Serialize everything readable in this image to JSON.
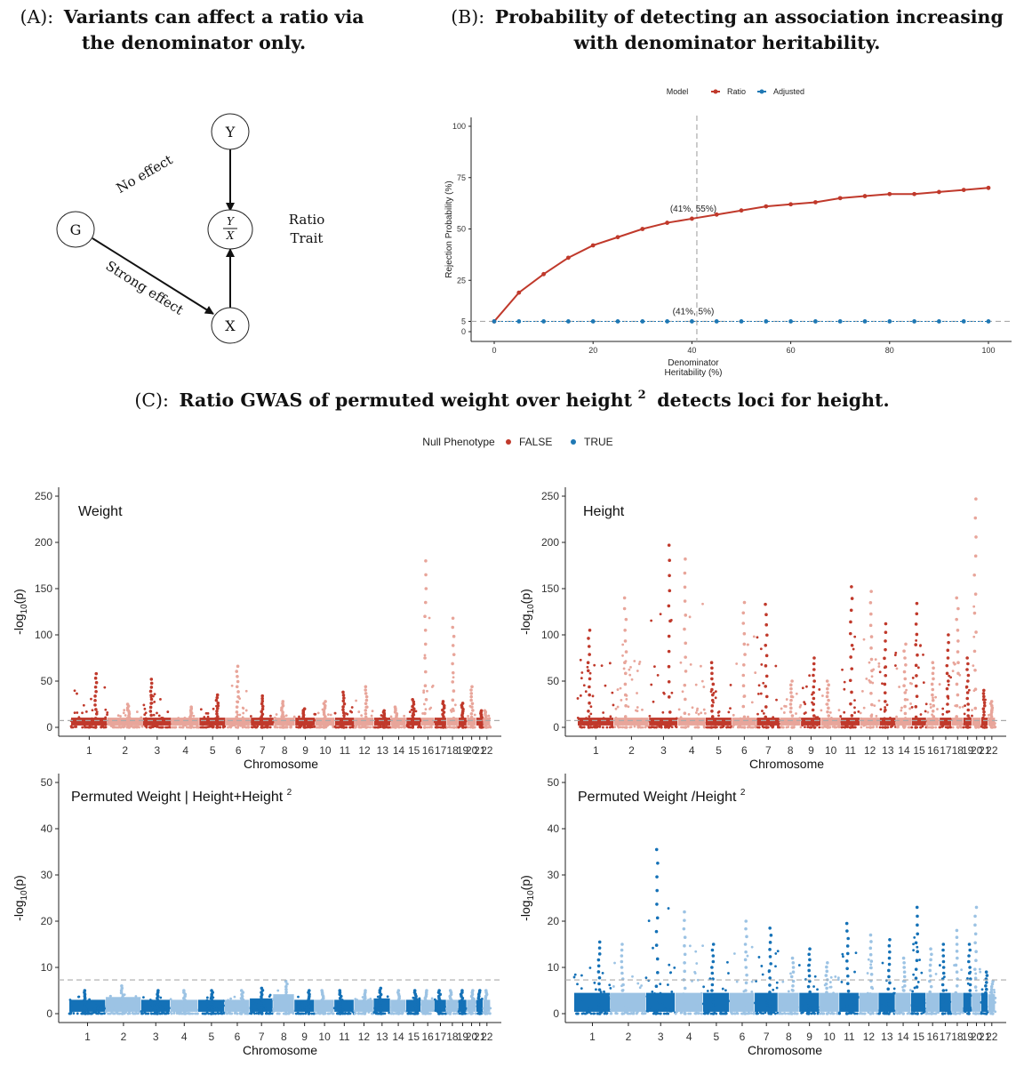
{
  "panels": {
    "a": {
      "title_prefix": "(A):",
      "title_bold_1": "Variants can affect a ratio via",
      "title_bold_2": "the denominator only."
    },
    "b": {
      "title_prefix": "(B):",
      "title_bold_1": "Probability of detecting an association increasing",
      "title_bold_2": "with denominator heritability."
    },
    "c": {
      "title_prefix": "(C):",
      "title_bold_main": "Ratio GWAS of permuted weight over height",
      "title_sup": "2",
      "title_bold_end": "detects loci for height."
    }
  },
  "diagram": {
    "nodes": {
      "y": "Y",
      "ratio_num": "Y",
      "ratio_den": "X",
      "g": "G",
      "x": "X"
    },
    "labels": {
      "no_effect": "No effect",
      "strong_effect": "Strong effect",
      "ratio_trait_1": "Ratio",
      "ratio_trait_2": "Trait"
    }
  },
  "colors": {
    "ratio_red": "#c0392b",
    "adjusted_blue": "#1f78b4",
    "false_dark": "#c0392b",
    "false_light": "#e8a59a",
    "true_dark": "#1471b7",
    "true_light": "#9cc3e4"
  },
  "chart_data": [
    {
      "id": "rejection-probability",
      "type": "line",
      "title": "",
      "xlabel_1": "Denominator",
      "xlabel_2": "Heritability (%)",
      "ylabel": "Rejection Probability (%)",
      "xlim": [
        0,
        100
      ],
      "ylim": [
        0,
        100
      ],
      "xticks": [
        "0",
        "20",
        "40",
        "60",
        "80",
        "100"
      ],
      "yticks": [
        "0",
        "5",
        "25",
        "50",
        "75",
        "100"
      ],
      "legend_title": "Model",
      "legend_position": "top",
      "series": [
        {
          "name": "Ratio",
          "x": [
            0,
            5,
            10,
            15,
            20,
            25,
            30,
            35,
            40,
            45,
            50,
            55,
            60,
            65,
            70,
            75,
            80,
            85,
            90,
            95,
            100
          ],
          "values": [
            5,
            19,
            28,
            36,
            42,
            46,
            50,
            53,
            55,
            57,
            59,
            61,
            62,
            63,
            65,
            66,
            67,
            67,
            68,
            69,
            70
          ]
        },
        {
          "name": "Adjusted",
          "x": [
            0,
            5,
            10,
            15,
            20,
            25,
            30,
            35,
            40,
            45,
            50,
            55,
            60,
            65,
            70,
            75,
            80,
            85,
            90,
            95,
            100
          ],
          "values": [
            5,
            5,
            5,
            5,
            5,
            5,
            5,
            5,
            5,
            5,
            5,
            5,
            5,
            5,
            5,
            5,
            5,
            5,
            5,
            5,
            5
          ]
        }
      ],
      "annotations": [
        {
          "x": 41,
          "y": 55,
          "text": "(41%, 55%)"
        },
        {
          "x": 41,
          "y": 5,
          "text": "(41%, 5%)"
        }
      ],
      "vline_x": 41,
      "hline_y": 5
    },
    {
      "id": "manhattan-legend",
      "type": "scatter",
      "legend_title": "Null Phenotype",
      "legend_entries": [
        "FALSE",
        "TRUE"
      ],
      "legend_position": "top"
    },
    {
      "id": "weight",
      "type": "scatter",
      "title": "Weight",
      "xlabel": "Chromosome",
      "ylabel_main": "-log",
      "ylabel_sub": "10",
      "ylabel_end": "(p)",
      "ylim": [
        0,
        250
      ],
      "yticks": [
        "0",
        "50",
        "100",
        "150",
        "200",
        "250"
      ],
      "threshold": 7.3,
      "null_phenotype": "FALSE",
      "chromosomes": [
        "1",
        "2",
        "3",
        "4",
        "5",
        "6",
        "7",
        "8",
        "9",
        "10",
        "11",
        "12",
        "13",
        "14",
        "15",
        "16",
        "17",
        "18",
        "19",
        "20",
        "21",
        "22"
      ],
      "peaks": [
        {
          "chr": "1",
          "value": 58
        },
        {
          "chr": "2",
          "value": 25
        },
        {
          "chr": "3",
          "value": 52
        },
        {
          "chr": "4",
          "value": 22
        },
        {
          "chr": "5",
          "value": 35
        },
        {
          "chr": "6",
          "value": 66
        },
        {
          "chr": "7",
          "value": 34
        },
        {
          "chr": "8",
          "value": 28
        },
        {
          "chr": "9",
          "value": 20
        },
        {
          "chr": "10",
          "value": 28
        },
        {
          "chr": "11",
          "value": 38
        },
        {
          "chr": "12",
          "value": 44
        },
        {
          "chr": "13",
          "value": 18
        },
        {
          "chr": "14",
          "value": 22
        },
        {
          "chr": "15",
          "value": 30
        },
        {
          "chr": "16",
          "value": 180
        },
        {
          "chr": "17",
          "value": 28
        },
        {
          "chr": "18",
          "value": 118
        },
        {
          "chr": "19",
          "value": 26
        },
        {
          "chr": "20",
          "value": 44
        },
        {
          "chr": "21",
          "value": 18
        },
        {
          "chr": "22",
          "value": 18
        }
      ]
    },
    {
      "id": "height",
      "type": "scatter",
      "title": "Height",
      "xlabel": "Chromosome",
      "ylabel_main": "-log",
      "ylabel_sub": "10",
      "ylabel_end": "(p)",
      "ylim": [
        0,
        250
      ],
      "yticks": [
        "0",
        "50",
        "100",
        "150",
        "200",
        "250"
      ],
      "threshold": 7.3,
      "null_phenotype": "FALSE",
      "chromosomes": [
        "1",
        "2",
        "3",
        "4",
        "5",
        "6",
        "7",
        "8",
        "9",
        "10",
        "11",
        "12",
        "13",
        "14",
        "15",
        "16",
        "17",
        "18",
        "19",
        "20",
        "21",
        "22"
      ],
      "peaks": [
        {
          "chr": "1",
          "value": 105
        },
        {
          "chr": "2",
          "value": 140
        },
        {
          "chr": "3",
          "value": 197
        },
        {
          "chr": "4",
          "value": 182
        },
        {
          "chr": "5",
          "value": 70
        },
        {
          "chr": "6",
          "value": 135
        },
        {
          "chr": "7",
          "value": 133
        },
        {
          "chr": "8",
          "value": 50
        },
        {
          "chr": "9",
          "value": 75
        },
        {
          "chr": "10",
          "value": 50
        },
        {
          "chr": "11",
          "value": 152
        },
        {
          "chr": "12",
          "value": 147
        },
        {
          "chr": "13",
          "value": 112
        },
        {
          "chr": "14",
          "value": 90
        },
        {
          "chr": "15",
          "value": 134
        },
        {
          "chr": "16",
          "value": 70
        },
        {
          "chr": "17",
          "value": 100
        },
        {
          "chr": "18",
          "value": 140
        },
        {
          "chr": "19",
          "value": 75
        },
        {
          "chr": "20",
          "value": 247
        },
        {
          "chr": "21",
          "value": 40
        },
        {
          "chr": "22",
          "value": 28
        }
      ]
    },
    {
      "id": "permuted-adjusted",
      "type": "scatter",
      "title_main": "Permuted Weight | Height+Height",
      "title_sup": "2",
      "xlabel": "Chromosome",
      "ylabel_main": "-log",
      "ylabel_sub": "10",
      "ylabel_end": "(p)",
      "ylim": [
        0,
        50
      ],
      "yticks": [
        "0",
        "10",
        "20",
        "30",
        "40",
        "50"
      ],
      "threshold": 7.3,
      "null_phenotype": "TRUE",
      "chromosomes": [
        "1",
        "2",
        "3",
        "4",
        "5",
        "6",
        "7",
        "8",
        "9",
        "10",
        "11",
        "12",
        "13",
        "14",
        "15",
        "16",
        "17",
        "18",
        "19",
        "20",
        "21",
        "22"
      ],
      "peaks": [
        {
          "chr": "1",
          "value": 5
        },
        {
          "chr": "2",
          "value": 6
        },
        {
          "chr": "3",
          "value": 5
        },
        {
          "chr": "4",
          "value": 5
        },
        {
          "chr": "5",
          "value": 5
        },
        {
          "chr": "6",
          "value": 5
        },
        {
          "chr": "7",
          "value": 5.5
        },
        {
          "chr": "8",
          "value": 7
        },
        {
          "chr": "9",
          "value": 5
        },
        {
          "chr": "10",
          "value": 5
        },
        {
          "chr": "11",
          "value": 5
        },
        {
          "chr": "12",
          "value": 5
        },
        {
          "chr": "13",
          "value": 5.5
        },
        {
          "chr": "14",
          "value": 5
        },
        {
          "chr": "15",
          "value": 5
        },
        {
          "chr": "16",
          "value": 5
        },
        {
          "chr": "17",
          "value": 5
        },
        {
          "chr": "18",
          "value": 5
        },
        {
          "chr": "19",
          "value": 5
        },
        {
          "chr": "20",
          "value": 5
        },
        {
          "chr": "21",
          "value": 5
        },
        {
          "chr": "22",
          "value": 5
        }
      ]
    },
    {
      "id": "permuted-ratio",
      "type": "scatter",
      "title_main": "Permuted Weight /Height",
      "title_sup": "2",
      "xlabel": "Chromosome",
      "ylabel_main": "-log",
      "ylabel_sub": "10",
      "ylabel_end": "(p)",
      "ylim": [
        0,
        50
      ],
      "yticks": [
        "0",
        "10",
        "20",
        "30",
        "40",
        "50"
      ],
      "threshold": 7.3,
      "null_phenotype": "TRUE",
      "chromosomes": [
        "1",
        "2",
        "3",
        "4",
        "5",
        "6",
        "7",
        "8",
        "9",
        "10",
        "11",
        "12",
        "13",
        "14",
        "15",
        "16",
        "17",
        "18",
        "19",
        "20",
        "21",
        "22"
      ],
      "peaks": [
        {
          "chr": "1",
          "value": 15.5
        },
        {
          "chr": "2",
          "value": 15
        },
        {
          "chr": "3",
          "value": 35.5
        },
        {
          "chr": "4",
          "value": 22
        },
        {
          "chr": "5",
          "value": 15
        },
        {
          "chr": "6",
          "value": 20
        },
        {
          "chr": "7",
          "value": 18.5
        },
        {
          "chr": "8",
          "value": 12
        },
        {
          "chr": "9",
          "value": 14
        },
        {
          "chr": "10",
          "value": 11
        },
        {
          "chr": "11",
          "value": 19.5
        },
        {
          "chr": "12",
          "value": 17
        },
        {
          "chr": "13",
          "value": 16
        },
        {
          "chr": "14",
          "value": 12
        },
        {
          "chr": "15",
          "value": 23
        },
        {
          "chr": "16",
          "value": 14
        },
        {
          "chr": "17",
          "value": 15
        },
        {
          "chr": "18",
          "value": 18
        },
        {
          "chr": "19",
          "value": 15
        },
        {
          "chr": "20",
          "value": 23
        },
        {
          "chr": "21",
          "value": 9
        },
        {
          "chr": "22",
          "value": 7
        }
      ]
    }
  ]
}
